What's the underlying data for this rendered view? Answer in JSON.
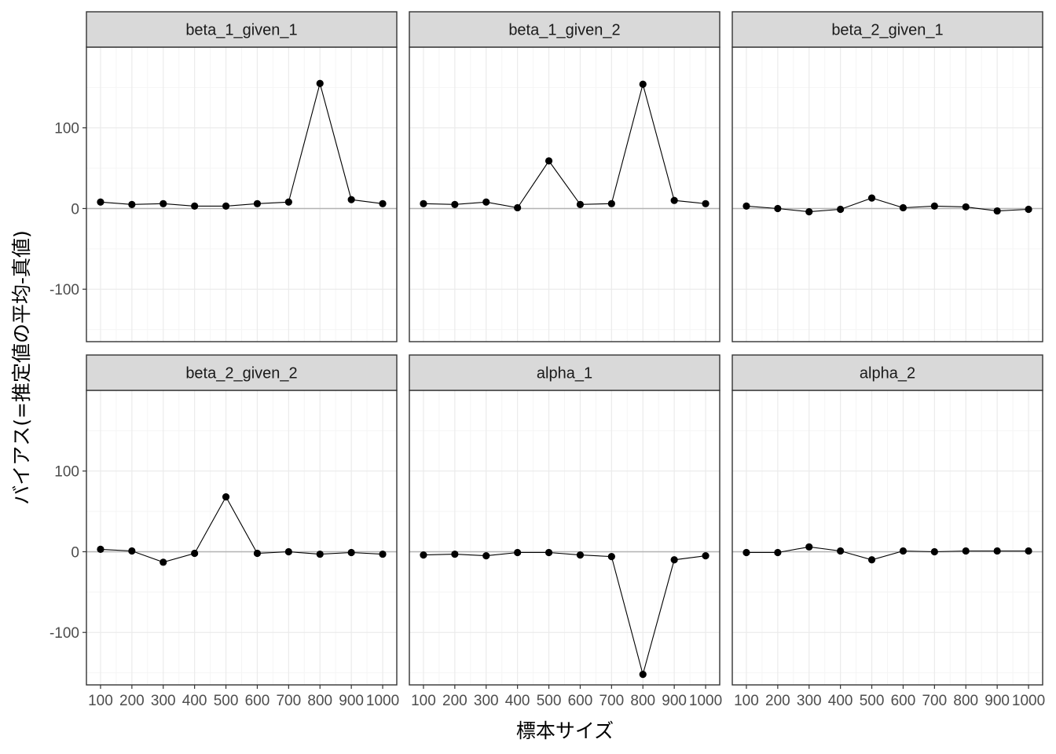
{
  "chart_data": {
    "type": "line",
    "xlabel": "標本サイズ",
    "ylabel": "バイアス(=推定値の平均-真値)",
    "x": [
      100,
      200,
      300,
      400,
      500,
      600,
      700,
      800,
      900,
      1000
    ],
    "x_tick_labels": [
      "100",
      "200",
      "300",
      "400",
      "500",
      "600",
      "700",
      "800",
      "900",
      "1000"
    ],
    "y_ticks": [
      -100,
      0,
      100
    ],
    "y_tick_labels": [
      "-100",
      "0",
      "100"
    ],
    "ylim": [
      -165,
      200
    ],
    "xlim": [
      55,
      1045
    ],
    "grid": true,
    "reference_line_y": 0,
    "facets": [
      {
        "name": "beta_1_given_1",
        "values": [
          8,
          5,
          6,
          3,
          3,
          6,
          8,
          155,
          11,
          6
        ]
      },
      {
        "name": "beta_1_given_2",
        "values": [
          6,
          5,
          8,
          1,
          59,
          5,
          6,
          154,
          10,
          6
        ]
      },
      {
        "name": "beta_2_given_1",
        "values": [
          3,
          0,
          -4,
          -1,
          13,
          1,
          3,
          2,
          -3,
          -1
        ]
      },
      {
        "name": "beta_2_given_2",
        "values": [
          3,
          1,
          -13,
          -2,
          68,
          -2,
          0,
          -3,
          -1,
          -3
        ]
      },
      {
        "name": "alpha_1",
        "values": [
          -4,
          -3,
          -5,
          -1,
          -1,
          -4,
          -6,
          -152,
          -10,
          -5
        ]
      },
      {
        "name": "alpha_2",
        "values": [
          -1,
          -1,
          6,
          1,
          -10,
          1,
          0,
          1,
          1,
          1
        ]
      }
    ]
  },
  "colors": {
    "panel_background": "#ffffff",
    "strip_background": "#d9d9d9",
    "panel_border": "#333333",
    "grid_major": "#ebebeb",
    "grid_minor": "#f5f5f5",
    "reference_line": "#b3b3b3",
    "series": "#000000"
  }
}
